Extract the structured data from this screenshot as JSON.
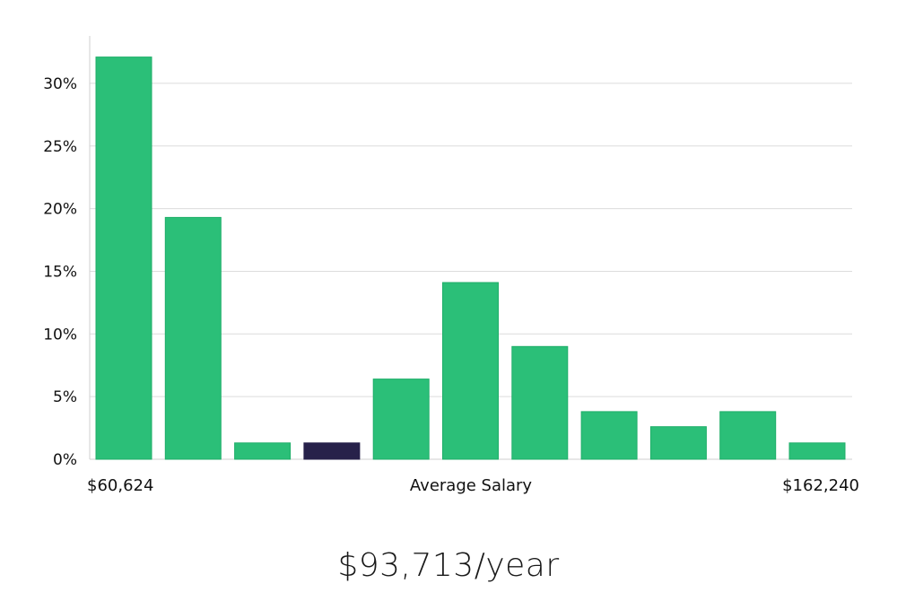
{
  "chart_data": {
    "type": "bar",
    "x_axis": {
      "min_label": "$60,624",
      "center_label": "Average Salary",
      "max_label": "$162,240"
    },
    "y_ticks": [
      "0%",
      "5%",
      "10%",
      "15%",
      "20%",
      "25%",
      "30%"
    ],
    "ylim": [
      0,
      33
    ],
    "values": [
      32.1,
      19.3,
      1.3,
      1.3,
      6.4,
      14.1,
      9.0,
      3.8,
      2.6,
      3.8,
      1.3
    ],
    "highlight_index": 3,
    "colors": {
      "bar": "#2bbf78",
      "bar_edge": "#1fae69",
      "highlight": "#27214a"
    },
    "grid": true
  },
  "summary": {
    "headline": "$93,713/year"
  }
}
